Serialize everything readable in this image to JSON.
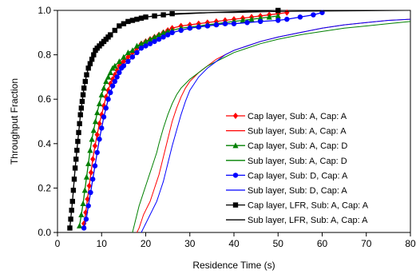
{
  "chart_data": {
    "type": "line",
    "title": "",
    "xlabel": "Residence Time (s)",
    "ylabel": "Throughput Fraction",
    "xlim": [
      0,
      80
    ],
    "ylim": [
      0,
      1.0
    ],
    "x_ticks": [
      0,
      10,
      20,
      30,
      40,
      50,
      60,
      70,
      80
    ],
    "x_tick_labels": [
      "0",
      "10",
      "20",
      "30",
      "40",
      "50",
      "60",
      "70",
      "80"
    ],
    "y_ticks": [
      0.0,
      0.2,
      0.4,
      0.6,
      0.8,
      1.0
    ],
    "y_tick_labels": [
      "0.0",
      "0.2",
      "0.4",
      "0.6",
      "0.8",
      "1.0"
    ],
    "grid": false,
    "legend_position": "right",
    "series": [
      {
        "name": "Cap layer, Sub: A, Cap: A",
        "color": "#ff0000",
        "marker": "diamond",
        "x": [
          6.0,
          6.4,
          6.8,
          7.2,
          7.6,
          8.0,
          8.5,
          9.0,
          9.5,
          10.0,
          10.5,
          11.0,
          11.5,
          12.0,
          12.5,
          13.0,
          13.5,
          14.0,
          14.5,
          15.0,
          16.0,
          17.0,
          18.0,
          19.0,
          20.0,
          21.0,
          22.0,
          23.0,
          24.0,
          25.0,
          26.0,
          28.0,
          30.0,
          32.0,
          34.0,
          36.0,
          38.0,
          40.0,
          42.0,
          44.0,
          46.0,
          48.0,
          50.0,
          52.0
        ],
        "y": [
          0.04,
          0.09,
          0.15,
          0.21,
          0.27,
          0.33,
          0.39,
          0.44,
          0.49,
          0.53,
          0.57,
          0.61,
          0.64,
          0.67,
          0.69,
          0.71,
          0.73,
          0.75,
          0.76,
          0.77,
          0.79,
          0.81,
          0.83,
          0.85,
          0.86,
          0.87,
          0.88,
          0.89,
          0.9,
          0.91,
          0.92,
          0.93,
          0.935,
          0.94,
          0.945,
          0.95,
          0.955,
          0.96,
          0.965,
          0.97,
          0.975,
          0.98,
          0.985,
          0.99
        ]
      },
      {
        "name": "Sub layer, Sub: A, Cap: A",
        "color": "#ff0000",
        "marker": "none",
        "x": [
          18.0,
          18.5,
          19.0,
          19.5,
          20.0,
          20.5,
          21.0,
          21.5,
          22.0,
          22.5,
          23.0,
          23.5,
          24.0,
          24.5,
          25.0,
          26.0,
          27.0,
          28.0,
          29.0,
          30.0,
          31.0,
          32.0,
          34.0,
          36.0,
          38.0,
          40.0,
          43.0,
          46.0,
          50.0,
          55.0,
          60.0,
          65.0,
          70.0,
          75.0,
          80.0
        ],
        "y": [
          0.0,
          0.02,
          0.05,
          0.08,
          0.1,
          0.12,
          0.14,
          0.17,
          0.2,
          0.23,
          0.26,
          0.3,
          0.34,
          0.38,
          0.42,
          0.5,
          0.56,
          0.61,
          0.65,
          0.68,
          0.7,
          0.72,
          0.75,
          0.78,
          0.8,
          0.82,
          0.84,
          0.86,
          0.88,
          0.9,
          0.92,
          0.935,
          0.945,
          0.955,
          0.96
        ]
      },
      {
        "name": "Cap layer, Sub: A, Cap: D",
        "color": "#008000",
        "marker": "triangle",
        "x": [
          5.0,
          5.4,
          5.8,
          6.2,
          6.6,
          7.0,
          7.4,
          7.8,
          8.2,
          8.6,
          9.0,
          9.5,
          10.0,
          10.5,
          11.0,
          11.5,
          12.0,
          12.5,
          13.0,
          14.0,
          15.0,
          16.0,
          17.0,
          18.0,
          19.0,
          20.0,
          21.0,
          22.0,
          23.0,
          24.0,
          25.0,
          26.0,
          28.0,
          30.0,
          32.0,
          34.0,
          36.0,
          38.0,
          40.0,
          42.0,
          44.0,
          46.0,
          48.0,
          50.0
        ],
        "y": [
          0.03,
          0.08,
          0.13,
          0.19,
          0.25,
          0.31,
          0.37,
          0.42,
          0.46,
          0.5,
          0.54,
          0.58,
          0.62,
          0.65,
          0.68,
          0.7,
          0.72,
          0.74,
          0.75,
          0.77,
          0.79,
          0.81,
          0.82,
          0.84,
          0.85,
          0.86,
          0.87,
          0.88,
          0.89,
          0.9,
          0.905,
          0.91,
          0.92,
          0.925,
          0.93,
          0.935,
          0.94,
          0.945,
          0.95,
          0.955,
          0.96,
          0.965,
          0.97,
          0.975
        ]
      },
      {
        "name": "Sub layer, Sub: A, Cap: D",
        "color": "#008000",
        "marker": "none",
        "x": [
          17.0,
          17.5,
          18.0,
          18.5,
          19.0,
          19.5,
          20.0,
          20.5,
          21.0,
          21.5,
          22.0,
          22.5,
          23.0,
          24.0,
          25.0,
          26.0,
          27.0,
          28.0,
          29.0,
          30.0,
          32.0,
          34.0,
          36.0,
          38.0,
          40.0,
          43.0,
          46.0,
          50.0,
          55.0,
          60.0,
          65.0,
          70.0,
          75.0,
          80.0
        ],
        "y": [
          0.0,
          0.04,
          0.08,
          0.12,
          0.15,
          0.18,
          0.21,
          0.24,
          0.27,
          0.3,
          0.33,
          0.36,
          0.4,
          0.47,
          0.53,
          0.58,
          0.62,
          0.65,
          0.67,
          0.69,
          0.72,
          0.75,
          0.77,
          0.79,
          0.81,
          0.83,
          0.85,
          0.87,
          0.89,
          0.905,
          0.92,
          0.93,
          0.94,
          0.95
        ]
      },
      {
        "name": "Cap layer, Sub: D, Cap: A",
        "color": "#0000ff",
        "marker": "circle",
        "x": [
          6.0,
          6.5,
          7.0,
          7.5,
          8.0,
          8.5,
          9.0,
          9.5,
          10.0,
          10.5,
          11.0,
          11.5,
          12.0,
          12.5,
          13.0,
          13.5,
          14.0,
          14.5,
          15.0,
          16.0,
          17.0,
          18.0,
          19.0,
          20.0,
          21.0,
          22.0,
          23.0,
          24.0,
          25.0,
          26.0,
          28.0,
          30.0,
          32.0,
          34.0,
          36.0,
          38.0,
          40.0,
          43.0,
          46.0,
          50.0,
          52.0,
          55.0,
          58.0,
          60.0
        ],
        "y": [
          0.02,
          0.06,
          0.12,
          0.18,
          0.24,
          0.3,
          0.36,
          0.42,
          0.47,
          0.52,
          0.56,
          0.6,
          0.63,
          0.66,
          0.68,
          0.7,
          0.72,
          0.74,
          0.75,
          0.77,
          0.79,
          0.81,
          0.83,
          0.84,
          0.85,
          0.86,
          0.87,
          0.88,
          0.89,
          0.9,
          0.91,
          0.92,
          0.925,
          0.93,
          0.935,
          0.94,
          0.94,
          0.945,
          0.95,
          0.955,
          0.96,
          0.97,
          0.98,
          0.99
        ]
      },
      {
        "name": "Sub layer, Sub: D, Cap: A",
        "color": "#0000ff",
        "marker": "none",
        "x": [
          19.0,
          19.5,
          20.0,
          20.5,
          21.0,
          21.5,
          22.0,
          22.5,
          23.0,
          23.5,
          24.0,
          24.5,
          25.0,
          25.5,
          26.0,
          27.0,
          28.0,
          29.0,
          30.0,
          31.0,
          32.0,
          34.0,
          36.0,
          38.0,
          40.0,
          43.0,
          46.0,
          50.0,
          55.0,
          60.0,
          65.0,
          70.0,
          75.0,
          80.0
        ],
        "y": [
          0.0,
          0.02,
          0.04,
          0.06,
          0.08,
          0.1,
          0.12,
          0.14,
          0.17,
          0.2,
          0.23,
          0.27,
          0.31,
          0.35,
          0.39,
          0.46,
          0.53,
          0.59,
          0.64,
          0.67,
          0.7,
          0.74,
          0.77,
          0.8,
          0.82,
          0.84,
          0.86,
          0.88,
          0.9,
          0.92,
          0.935,
          0.945,
          0.955,
          0.96
        ]
      },
      {
        "name": "Cap layer, LFR, Sub: A, Cap: A",
        "color": "#000000",
        "marker": "square",
        "x": [
          2.8,
          3.0,
          3.2,
          3.4,
          3.6,
          3.8,
          4.0,
          4.2,
          4.4,
          4.6,
          4.8,
          5.0,
          5.2,
          5.4,
          5.6,
          5.8,
          6.0,
          6.3,
          6.6,
          7.0,
          7.4,
          7.8,
          8.2,
          8.6,
          9.0,
          9.5,
          10.0,
          10.5,
          11.0,
          11.5,
          12.0,
          13.0,
          14.0,
          15.0,
          16.0,
          17.0,
          18.0,
          19.0,
          20.0,
          22.0,
          24.0,
          26.0,
          50.0
        ],
        "y": [
          0.02,
          0.06,
          0.1,
          0.14,
          0.19,
          0.24,
          0.29,
          0.33,
          0.37,
          0.41,
          0.45,
          0.49,
          0.53,
          0.56,
          0.59,
          0.62,
          0.65,
          0.68,
          0.71,
          0.74,
          0.76,
          0.78,
          0.8,
          0.82,
          0.83,
          0.84,
          0.85,
          0.86,
          0.87,
          0.88,
          0.89,
          0.91,
          0.93,
          0.94,
          0.95,
          0.955,
          0.96,
          0.965,
          0.97,
          0.975,
          0.98,
          0.985,
          1.0
        ]
      },
      {
        "name": "Sub layer, LFR, Sub: A, Cap: A",
        "color": "#000000",
        "marker": "none",
        "x": [
          2.8,
          3.2,
          3.6,
          4.0,
          4.4,
          4.8,
          5.2,
          5.6,
          6.0,
          6.5,
          7.0,
          7.5,
          8.0,
          8.5,
          9.0,
          10.0,
          11.0,
          12.0,
          13.0,
          14.0,
          15.0,
          16.0,
          18.0,
          20.0,
          22.0,
          25.0,
          30.0,
          35.0,
          40.0,
          50.0,
          60.0,
          70.0,
          80.0
        ],
        "y": [
          0.02,
          0.1,
          0.19,
          0.29,
          0.37,
          0.45,
          0.53,
          0.59,
          0.65,
          0.7,
          0.74,
          0.77,
          0.8,
          0.82,
          0.83,
          0.85,
          0.87,
          0.89,
          0.91,
          0.93,
          0.94,
          0.95,
          0.96,
          0.97,
          0.975,
          0.98,
          0.985,
          0.99,
          0.99,
          0.995,
          0.997,
          0.998,
          1.0
        ]
      }
    ]
  }
}
